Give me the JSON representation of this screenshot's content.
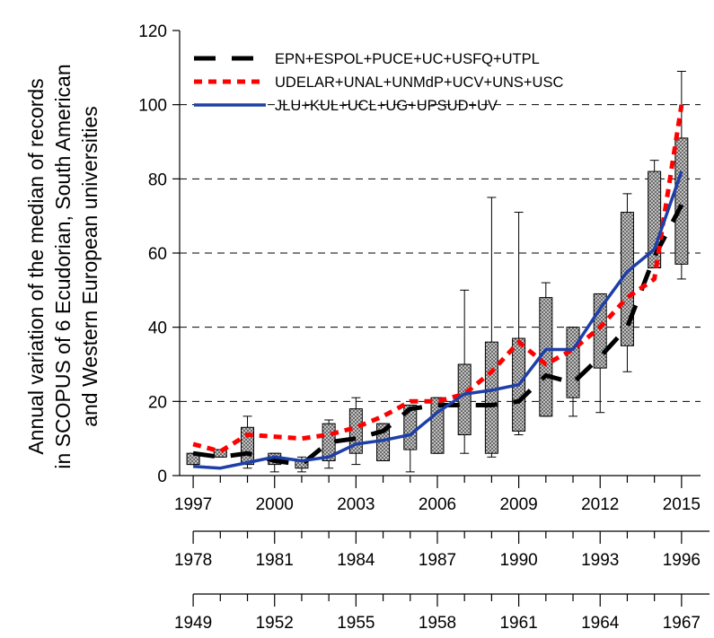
{
  "chart_data": {
    "type": "box",
    "ylabel": [
      "Annual variation of the median of records",
      "in SCOPUS of 6 Ecudorian, South American",
      "and Western European universities"
    ],
    "ylim": [
      0,
      120
    ],
    "y_ticks": [
      0,
      20,
      40,
      60,
      80,
      100,
      120
    ],
    "grid_y": [
      20,
      40,
      60,
      80,
      100
    ],
    "x_years": [
      1997,
      1998,
      1999,
      2000,
      2001,
      2002,
      2003,
      2004,
      2005,
      2006,
      2007,
      2008,
      2009,
      2010,
      2011,
      2012,
      2013,
      2014,
      2015
    ],
    "x_axes": [
      {
        "tick_labels": [
          "1997",
          "2000",
          "2003",
          "2006",
          "2009",
          "2012",
          "2015"
        ],
        "tick_years": [
          1997,
          2000,
          2003,
          2006,
          2009,
          2012,
          2015
        ]
      },
      {
        "tick_labels": [
          "1978",
          "1981",
          "1984",
          "1987",
          "1990",
          "1993",
          "1996"
        ],
        "tick_years": [
          1997,
          2000,
          2003,
          2006,
          2009,
          2012,
          2015
        ]
      },
      {
        "tick_labels": [
          "1949",
          "1952",
          "1955",
          "1958",
          "1961",
          "1964",
          "1967"
        ],
        "tick_years": [
          1997,
          2000,
          2003,
          2006,
          2009,
          2012,
          2015
        ]
      }
    ],
    "boxes": [
      {
        "year": 1997,
        "min": 3,
        "q1": 3,
        "q3": 6,
        "max": 6
      },
      {
        "year": 1998,
        "min": 5,
        "q1": 5,
        "q3": 7,
        "max": 7
      },
      {
        "year": 1999,
        "min": 2,
        "q1": 3,
        "q3": 13,
        "max": 16
      },
      {
        "year": 2000,
        "min": 1,
        "q1": 3,
        "q3": 6,
        "max": 6
      },
      {
        "year": 2001,
        "min": 1,
        "q1": 2,
        "q3": 4,
        "max": 5
      },
      {
        "year": 2002,
        "min": 2,
        "q1": 4,
        "q3": 14,
        "max": 15
      },
      {
        "year": 2003,
        "min": 3,
        "q1": 6,
        "q3": 18,
        "max": 21
      },
      {
        "year": 2004,
        "min": 4,
        "q1": 4,
        "q3": 14,
        "max": 14
      },
      {
        "year": 2005,
        "min": 1,
        "q1": 7,
        "q3": 19,
        "max": 19
      },
      {
        "year": 2006,
        "min": 6,
        "q1": 6,
        "q3": 21,
        "max": 21
      },
      {
        "year": 2007,
        "min": 6,
        "q1": 11,
        "q3": 30,
        "max": 50
      },
      {
        "year": 2008,
        "min": 5,
        "q1": 6,
        "q3": 36,
        "max": 75
      },
      {
        "year": 2009,
        "min": 11,
        "q1": 12,
        "q3": 37,
        "max": 71
      },
      {
        "year": 2010,
        "min": 16,
        "q1": 16,
        "q3": 48,
        "max": 52
      },
      {
        "year": 2011,
        "min": 16,
        "q1": 21,
        "q3": 40,
        "max": 40
      },
      {
        "year": 2012,
        "min": 17,
        "q1": 29,
        "q3": 49,
        "max": 49
      },
      {
        "year": 2013,
        "min": 28,
        "q1": 35,
        "q3": 71,
        "max": 76
      },
      {
        "year": 2014,
        "min": 56,
        "q1": 56,
        "q3": 82,
        "max": 85
      },
      {
        "year": 2015,
        "min": 53,
        "q1": 57,
        "q3": 91,
        "max": 109
      }
    ],
    "series": [
      {
        "name": "EPN+ESPOL+PUCE+UC+USFQ+UTPL",
        "color": "#000000",
        "style": "dashed",
        "x": [
          1997,
          1998,
          1999,
          2000,
          2001,
          2002,
          2003,
          2004,
          2005,
          2006,
          2007,
          2008,
          2009,
          2010,
          2011,
          2012,
          2013,
          2014,
          2015
        ],
        "y": [
          6,
          5,
          6,
          4,
          3,
          9,
          10,
          12,
          18,
          19,
          19,
          19,
          20,
          27,
          25,
          32,
          40,
          59,
          73
        ]
      },
      {
        "name": "UDELAR+UNAL+UNMdP+UCV+UNS+USC",
        "color": "#ff0000",
        "style": "dotted",
        "x": [
          1997,
          1998,
          1999,
          2000,
          2001,
          2002,
          2003,
          2004,
          2005,
          2006,
          2007,
          2008,
          2009,
          2010,
          2011,
          2012,
          2013,
          2014,
          2015
        ],
        "y": [
          8.5,
          6.5,
          11,
          10.5,
          10,
          11,
          13,
          16,
          20,
          20,
          22,
          28,
          36,
          30,
          34,
          40,
          48,
          53,
          100
        ]
      },
      {
        "name": "JLU+KUL+UCL+UG+UPSUD+UV",
        "color": "#1f3fa8",
        "style": "solid",
        "x": [
          1997,
          1998,
          1999,
          2000,
          2001,
          2002,
          2003,
          2004,
          2005,
          2006,
          2007,
          2008,
          2009,
          2010,
          2011,
          2012,
          2013,
          2014,
          2015
        ],
        "y": [
          2.5,
          2,
          3.5,
          5,
          4,
          5,
          8.5,
          9.5,
          11,
          17,
          22,
          23,
          24.5,
          34,
          34,
          45,
          55,
          61,
          82
        ]
      }
    ],
    "legend": "top-left"
  }
}
